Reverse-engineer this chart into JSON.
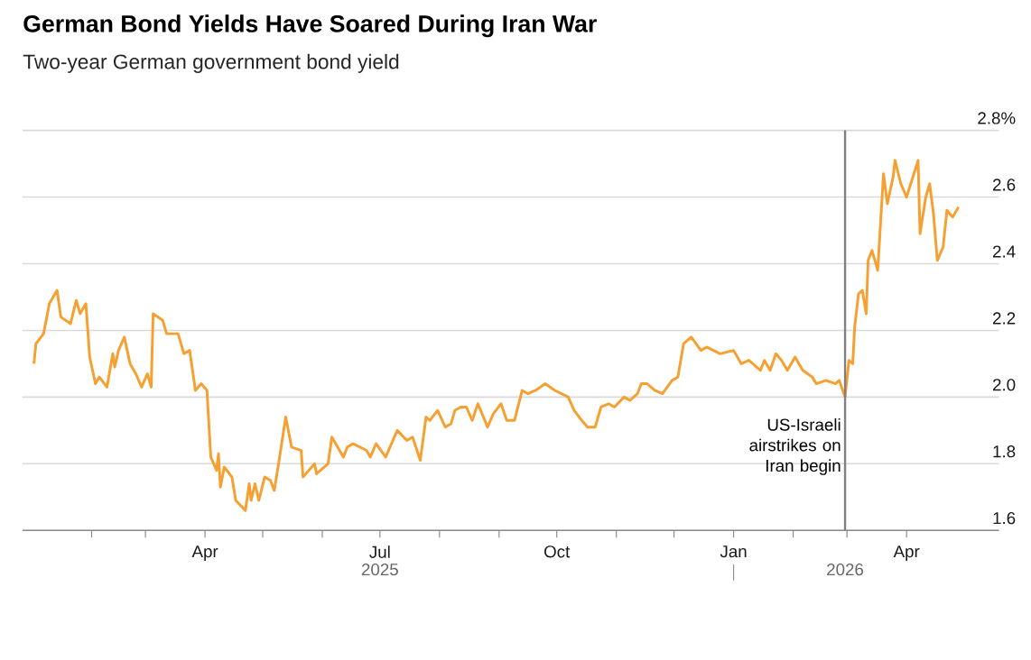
{
  "chart_data": {
    "type": "line",
    "title": "German Bond Yields Have Soared During Iran War",
    "subtitle": "Two-year German government bond yield",
    "x": [
      "2025-01-02",
      "2025-01-03",
      "2025-01-07",
      "2025-01-10",
      "2025-01-14",
      "2025-01-16",
      "2025-01-21",
      "2025-01-24",
      "2025-01-26",
      "2025-01-29",
      "2025-01-31",
      "2025-02-03",
      "2025-02-05",
      "2025-02-09",
      "2025-02-12",
      "2025-02-13",
      "2025-02-15",
      "2025-02-18",
      "2025-02-21",
      "2025-02-24",
      "2025-02-27",
      "2025-03-02",
      "2025-03-04",
      "2025-03-05",
      "2025-03-10",
      "2025-03-12",
      "2025-03-18",
      "2025-03-21",
      "2025-03-24",
      "2025-03-27",
      "2025-03-30",
      "2025-04-02",
      "2025-04-04",
      "2025-04-07",
      "2025-04-08",
      "2025-04-09",
      "2025-04-11",
      "2025-04-15",
      "2025-04-17",
      "2025-04-22",
      "2025-04-24",
      "2025-04-25",
      "2025-04-27",
      "2025-04-29",
      "2025-05-02",
      "2025-05-05",
      "2025-05-07",
      "2025-05-09",
      "2025-05-13",
      "2025-05-16",
      "2025-05-21",
      "2025-05-22",
      "2025-05-28",
      "2025-05-29",
      "2025-06-04",
      "2025-06-06",
      "2025-06-12",
      "2025-06-14",
      "2025-06-17",
      "2025-06-24",
      "2025-06-26",
      "2025-06-29",
      "2025-07-04",
      "2025-07-10",
      "2025-07-15",
      "2025-07-18",
      "2025-07-22",
      "2025-07-25",
      "2025-07-27",
      "2025-07-31",
      "2025-08-04",
      "2025-08-07",
      "2025-08-09",
      "2025-08-12",
      "2025-08-15",
      "2025-08-18",
      "2025-08-21",
      "2025-08-26",
      "2025-08-29",
      "2025-09-02",
      "2025-09-05",
      "2025-09-09",
      "2025-09-13",
      "2025-09-16",
      "2025-09-20",
      "2025-09-25",
      "2025-09-30",
      "2025-10-07",
      "2025-10-10",
      "2025-10-14",
      "2025-10-17",
      "2025-10-21",
      "2025-10-24",
      "2025-10-28",
      "2025-10-31",
      "2025-11-05",
      "2025-11-08",
      "2025-11-12",
      "2025-11-14",
      "2025-11-17",
      "2025-11-21",
      "2025-11-25",
      "2025-11-30",
      "2025-12-03",
      "2025-12-06",
      "2025-12-10",
      "2025-12-15",
      "2025-12-18",
      "2025-12-25",
      "2026-01-01",
      "2026-01-05",
      "2026-01-09",
      "2026-01-15",
      "2026-01-17",
      "2026-01-20",
      "2026-01-23",
      "2026-01-26",
      "2026-01-29",
      "2026-02-02",
      "2026-02-06",
      "2026-02-11",
      "2026-02-13",
      "2026-02-18",
      "2026-02-23",
      "2026-02-25",
      "2026-02-28",
      "2026-03-02",
      "2026-03-04",
      "2026-03-05",
      "2026-03-07",
      "2026-03-09",
      "2026-03-11",
      "2026-03-12",
      "2026-03-14",
      "2026-03-17",
      "2026-03-20",
      "2026-03-22",
      "2026-03-25",
      "2026-03-26",
      "2026-03-29",
      "2026-04-01",
      "2026-04-07",
      "2026-04-08",
      "2026-04-11",
      "2026-04-13",
      "2026-04-15",
      "2026-04-17",
      "2026-04-20",
      "2026-04-22",
      "2026-04-25",
      "2026-04-28"
    ],
    "series": [
      {
        "color": "#f7a032",
        "values": [
          2.1,
          2.16,
          2.19,
          2.28,
          2.32,
          2.24,
          2.22,
          2.29,
          2.25,
          2.28,
          2.12,
          2.04,
          2.06,
          2.03,
          2.13,
          2.09,
          2.14,
          2.18,
          2.1,
          2.07,
          2.03,
          2.07,
          2.03,
          2.25,
          2.23,
          2.19,
          2.19,
          2.13,
          2.14,
          2.02,
          2.04,
          2.02,
          1.82,
          1.78,
          1.83,
          1.73,
          1.79,
          1.76,
          1.69,
          1.66,
          1.74,
          1.69,
          1.74,
          1.69,
          1.76,
          1.75,
          1.72,
          1.79,
          1.94,
          1.85,
          1.84,
          1.76,
          1.8,
          1.77,
          1.8,
          1.88,
          1.82,
          1.85,
          1.86,
          1.84,
          1.82,
          1.86,
          1.82,
          1.9,
          1.87,
          1.88,
          1.81,
          1.94,
          1.93,
          1.96,
          1.91,
          1.92,
          1.96,
          1.97,
          1.97,
          1.93,
          1.98,
          1.91,
          1.95,
          1.98,
          1.93,
          1.93,
          2.02,
          2.01,
          2.02,
          2.04,
          2.02,
          2.0,
          1.96,
          1.93,
          1.91,
          1.91,
          1.97,
          1.98,
          1.97,
          2.0,
          1.99,
          2.01,
          2.04,
          2.04,
          2.02,
          2.01,
          2.05,
          2.06,
          2.16,
          2.18,
          2.14,
          2.15,
          2.13,
          2.14,
          2.1,
          2.11,
          2.08,
          2.11,
          2.08,
          2.13,
          2.11,
          2.08,
          2.12,
          2.08,
          2.06,
          2.04,
          2.05,
          2.04,
          2.05,
          2.0,
          2.11,
          2.1,
          2.21,
          2.31,
          2.32,
          2.25,
          2.41,
          2.44,
          2.38,
          2.67,
          2.58,
          2.66,
          2.71,
          2.64,
          2.6,
          2.71,
          2.49,
          2.6,
          2.64,
          2.55,
          2.41,
          2.45,
          2.56,
          2.54,
          2.57
        ]
      }
    ],
    "xlim": [
      "2024-12-27",
      "2026-05-19"
    ],
    "xticks": [
      {
        "value": "2025-02-01",
        "label": null
      },
      {
        "value": "2025-03-01",
        "label": null
      },
      {
        "value": "2025-04-01",
        "label": "Apr"
      },
      {
        "value": "2025-05-01",
        "label": null
      },
      {
        "value": "2025-06-01",
        "label": null
      },
      {
        "value": "2025-07-01",
        "label": "Jul"
      },
      {
        "value": "2025-08-01",
        "label": null
      },
      {
        "value": "2025-09-01",
        "label": null
      },
      {
        "value": "2025-10-01",
        "label": "Oct"
      },
      {
        "value": "2025-11-01",
        "label": null
      },
      {
        "value": "2025-12-01",
        "label": null
      },
      {
        "value": "2026-01-01",
        "label": "Jan"
      },
      {
        "value": "2026-02-01",
        "label": null
      },
      {
        "value": "2026-03-01",
        "label": null
      },
      {
        "value": "2026-04-01",
        "label": "Apr"
      }
    ],
    "ylim": [
      1.6,
      2.8
    ],
    "yticks": [
      1.6,
      1.8,
      {
        "value": 2.0,
        "label": "2.0"
      },
      2.2,
      2.4,
      2.6,
      {
        "value": 2.8,
        "label": "2.8%"
      }
    ],
    "x2lim": [
      "2024-12-27",
      "2026-05-19"
    ],
    "x2ticks": [
      {
        "value": "2025-07-01",
        "label": "2025"
      },
      {
        "value": "2026-01-01",
        "label": null
      },
      {
        "value": "2026-02-28",
        "label": "2026"
      }
    ],
    "grid": "y",
    "ref_lines": [
      {
        "axis": "x",
        "value": "2026-02-28",
        "label": "US-Israeli airstrikes on Iran begin",
        "color": "#808080"
      }
    ]
  }
}
